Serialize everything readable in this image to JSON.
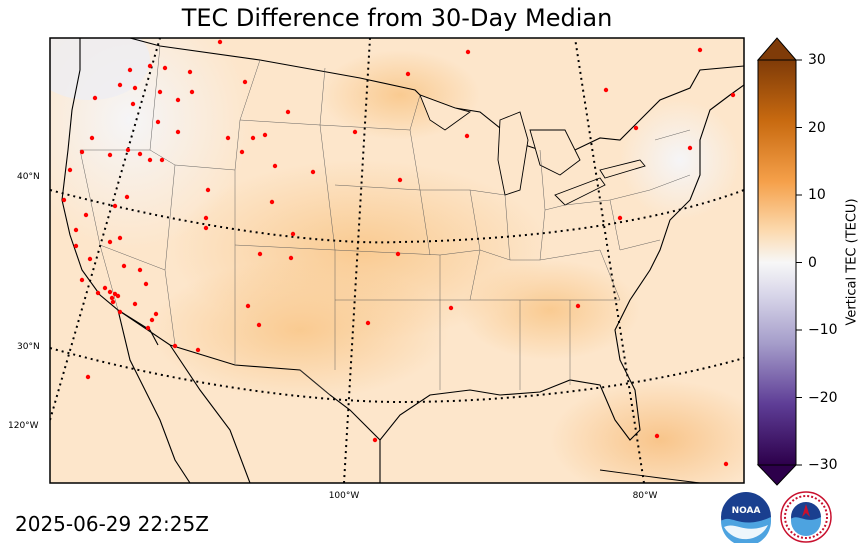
{
  "title": "TEC Difference from 30-Day Median",
  "timestamp": "2025-06-29 22:25Z",
  "colorbar": {
    "label": "Vertical TEC (TECU)",
    "ticks": [
      "30",
      "20",
      "10",
      "0",
      "−10",
      "−20",
      "−30"
    ],
    "range": [
      -30,
      30
    ]
  },
  "graticule": {
    "lat_labels": [
      "40°N",
      "30°N",
      "120°W"
    ],
    "lon_labels": [
      "100°W",
      "80°W"
    ]
  },
  "colors": {
    "positive_max": "#7f3b08",
    "positive_mid": "#f5a04a",
    "near_zero": "#f7f7f7",
    "negative_mid": "#8a80b8",
    "negative_max": "#2d004b",
    "station_marker": "#ff0000"
  },
  "stations": {
    "count_visible": 100,
    "marker_color": "#ff0000"
  },
  "logos": {
    "noaa": "NOAA",
    "nws": "NATIONAL WEATHER SERVICE"
  }
}
